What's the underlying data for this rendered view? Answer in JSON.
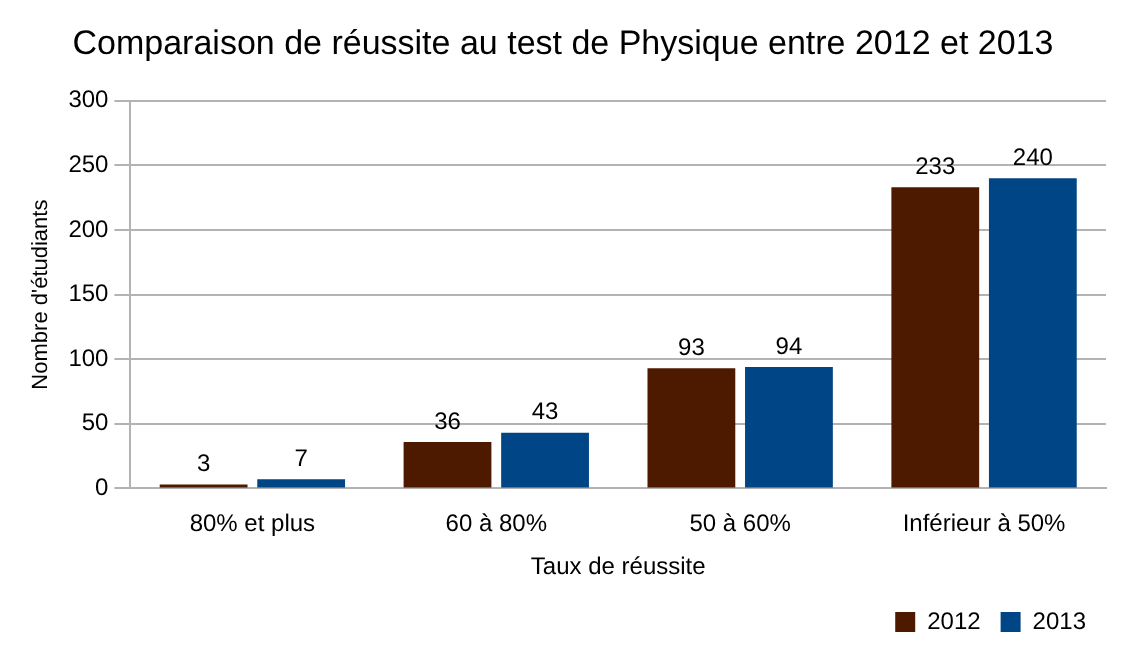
{
  "chart_data": {
    "type": "bar",
    "title": "Comparaison de réussite au test de Physique entre 2012 et 2013",
    "xlabel": "Taux de réussite",
    "ylabel": "Nombre d'étudiants",
    "categories": [
      "80% et plus",
      "60 à 80%",
      "50 à 60%",
      "Inférieur à 50%"
    ],
    "series": [
      {
        "name": "2012",
        "color": "#4d1a00",
        "values": [
          3,
          36,
          93,
          233
        ]
      },
      {
        "name": "2013",
        "color": "#004586",
        "values": [
          7,
          43,
          94,
          240
        ]
      }
    ],
    "ylim": [
      0,
      300
    ],
    "yticks": [
      0,
      50,
      100,
      150,
      200,
      250,
      300
    ],
    "grid": "y",
    "legend": "bottom right",
    "data_labels": true
  }
}
